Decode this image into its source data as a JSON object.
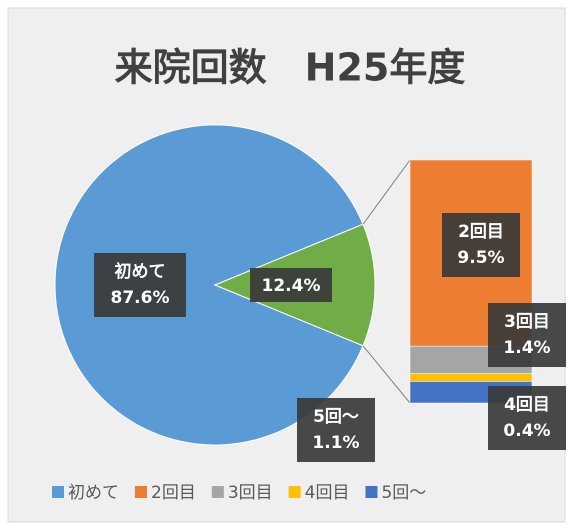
{
  "chart_data": {
    "type": "pie-of-bar",
    "title": "来院回数　H25年度",
    "categories": [
      "初めて",
      "2回目",
      "3回目",
      "4回目",
      "5回〜"
    ],
    "values": [
      87.6,
      9.5,
      1.4,
      0.4,
      1.1
    ],
    "value_labels": [
      "87.6%",
      "9.5%",
      "1.4%",
      "0.4%",
      "1.1%"
    ],
    "colors": [
      "#5b9bd5",
      "#ed7d31",
      "#a5a5a5",
      "#ffc000",
      "#4472c4"
    ],
    "other": {
      "value": 12.4,
      "label": "12.4%",
      "color": "#70ad47"
    },
    "legend": "bottom"
  }
}
